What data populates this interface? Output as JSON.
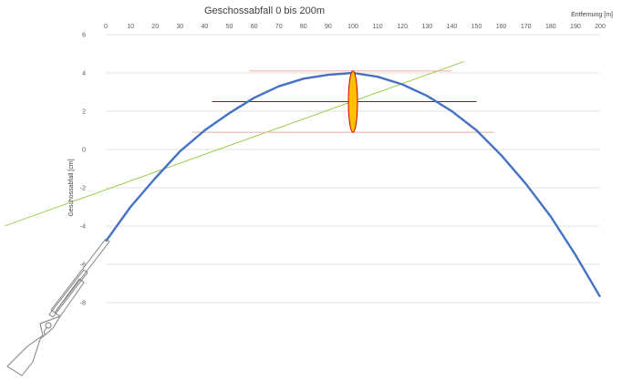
{
  "chart_data": {
    "type": "line",
    "title": "Geschossabfall 0 bis 200m",
    "xlabel": "Entfernung [m]",
    "ylabel": "Geschossabfall [cm]",
    "xlim": [
      0,
      200
    ],
    "ylim": [
      -8,
      6
    ],
    "xticks": [
      0,
      10,
      20,
      30,
      40,
      50,
      60,
      70,
      80,
      90,
      100,
      110,
      120,
      130,
      140,
      150,
      160,
      170,
      180,
      190,
      200
    ],
    "yticks": [
      6,
      4,
      2,
      0,
      -2,
      -4,
      -6,
      -8
    ],
    "x_axis_position": "top",
    "grid": "horizontal",
    "colors": {
      "trajectory": "#4472c4",
      "sight_line": "#8fca3c",
      "center_line": "#c00000",
      "band_lines": "#f4a6a6",
      "target_fill": "#ffc000",
      "target_stroke": "#d00000",
      "grid": "#d9d9d9",
      "rifle": "#7f7f7f"
    },
    "series": [
      {
        "x": [
          0,
          10,
          20,
          30,
          40,
          50,
          60,
          70,
          80,
          90,
          100,
          110,
          120,
          130,
          140,
          150,
          160,
          170,
          180,
          190,
          200
        ],
        "y": [
          -4.8,
          -3.0,
          -1.5,
          -0.1,
          1.0,
          1.9,
          2.7,
          3.3,
          3.7,
          3.9,
          4.0,
          3.8,
          3.4,
          2.8,
          2.0,
          1.0,
          -0.3,
          -1.8,
          -3.5,
          -5.5,
          -7.7
        ]
      }
    ],
    "reference_lines": [
      {
        "role": "sight-line",
        "x": [
          -41,
          145
        ],
        "y": [
          -4.0,
          4.6
        ]
      },
      {
        "role": "center-line",
        "x": [
          43,
          150
        ],
        "y": [
          2.5,
          2.5
        ]
      },
      {
        "role": "upper-band",
        "x": [
          58,
          140
        ],
        "y": [
          4.1,
          4.1
        ]
      },
      {
        "role": "lower-band",
        "x": [
          35,
          157
        ],
        "y": [
          0.9,
          0.9
        ]
      }
    ],
    "target": {
      "x": 100,
      "y": 2.5,
      "y_range": [
        0.9,
        4.1
      ]
    }
  }
}
